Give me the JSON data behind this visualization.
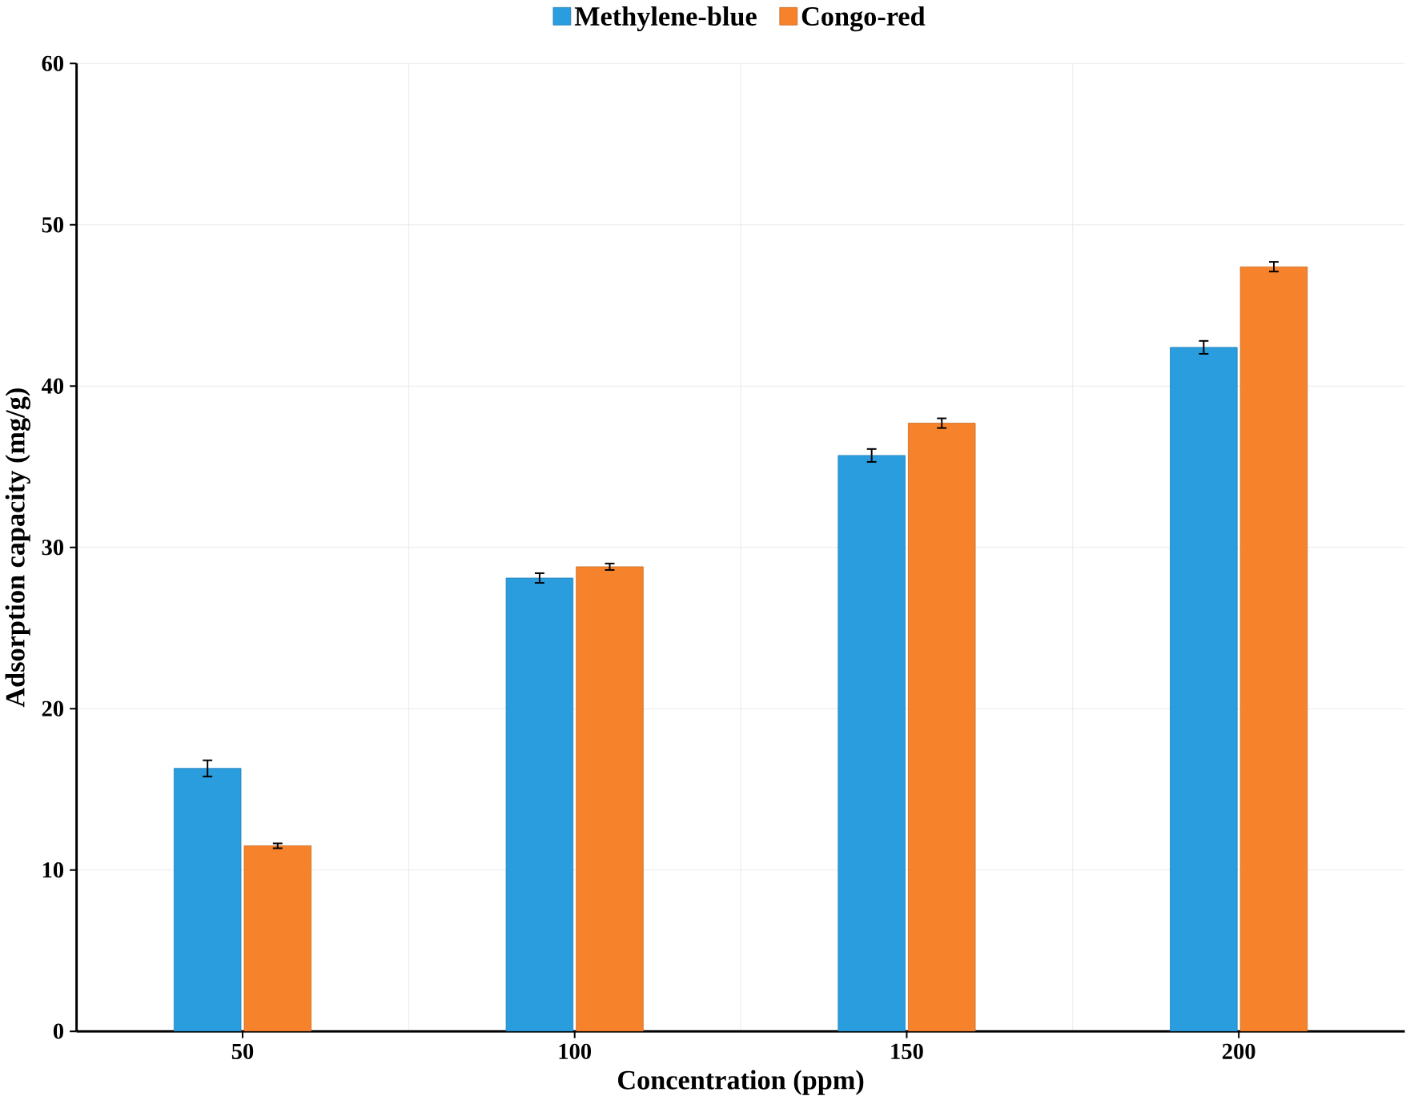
{
  "chart_data": {
    "type": "bar",
    "xlabel": "Concentration (ppm)",
    "ylabel": "Adsorption capacity (mg/g)",
    "categories": [
      "50",
      "100",
      "150",
      "200"
    ],
    "series": [
      {
        "name": "Methylene-blue",
        "color": "#2a9ddf",
        "values": [
          16.3,
          28.1,
          35.7,
          42.4
        ],
        "errors": [
          0.5,
          0.3,
          0.4,
          0.4
        ]
      },
      {
        "name": "Congo-red",
        "color": "#f6832c",
        "values": [
          11.5,
          28.8,
          37.7,
          47.4
        ],
        "errors": [
          0.15,
          0.2,
          0.3,
          0.3
        ]
      }
    ],
    "ylim": [
      0,
      60
    ],
    "yticks": [
      0,
      10,
      20,
      30,
      40,
      50,
      60
    ],
    "grid": true,
    "legend": "top"
  }
}
